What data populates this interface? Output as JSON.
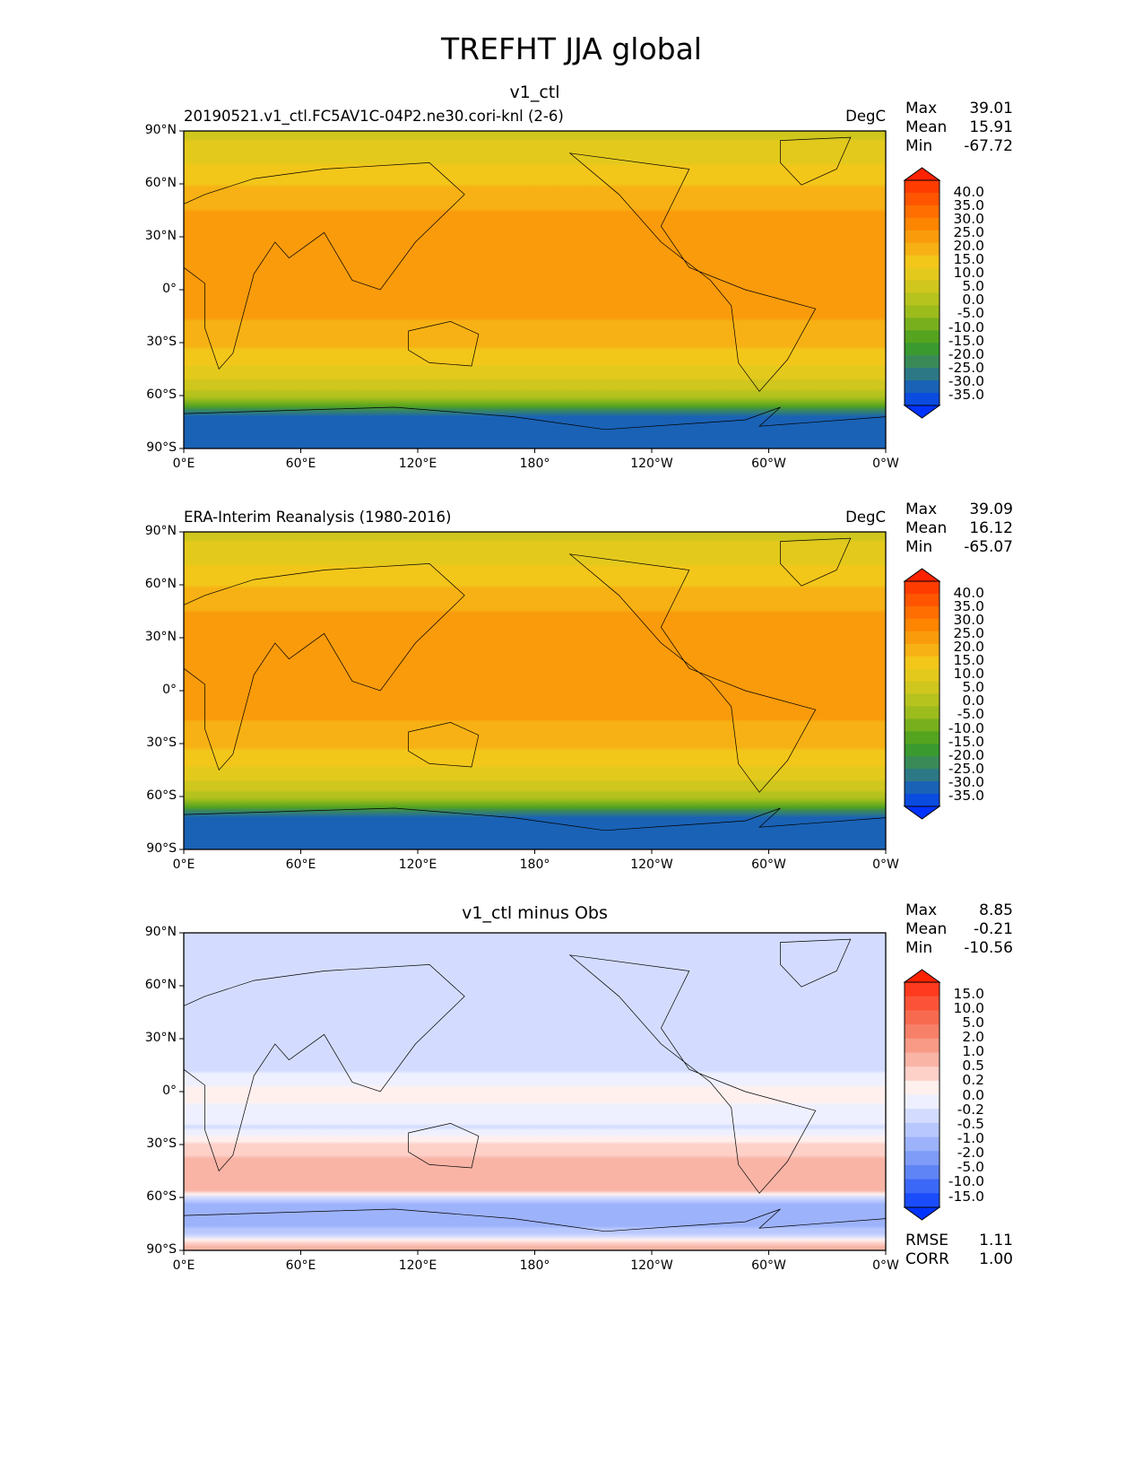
{
  "figure_title": "TREFHT JJA global",
  "chart_data": [
    {
      "type": "heatmap",
      "title": "v1_ctl",
      "left_title": "20190521.v1_ctl.FC5AV1C-04P2.ne30.cori-knl (2-6)",
      "units": "DegC",
      "stats": {
        "max_label": "Max",
        "max": "39.01",
        "mean_label": "Mean",
        "mean": "15.91",
        "min_label": "Min",
        "min": "-67.72"
      },
      "colorbar_labels": [
        "40.0",
        "35.0",
        "30.0",
        "25.0",
        "20.0",
        "15.0",
        "10.0",
        "5.0",
        "0.0",
        "-5.0",
        "-10.0",
        "-15.0",
        "-20.0",
        "-25.0",
        "-30.0",
        "-35.0"
      ],
      "zonal_profile": {
        "lat": [
          90,
          75,
          65,
          50,
          35,
          20,
          0,
          -20,
          -35,
          -45,
          -55,
          -60,
          -65,
          -70,
          -90
        ],
        "value": [
          3,
          8,
          13,
          18,
          25,
          23,
          24,
          19,
          14,
          9,
          3,
          -5,
          -15,
          -35,
          -40
        ]
      }
    },
    {
      "type": "heatmap",
      "title": "",
      "left_title": "ERA-Interim Reanalysis (1980-2016)",
      "units": "DegC",
      "stats": {
        "max_label": "Max",
        "max": "39.09",
        "mean_label": "Mean",
        "mean": "16.12",
        "min_label": "Min",
        "min": "-65.07"
      },
      "colorbar_labels": [
        "40.0",
        "35.0",
        "30.0",
        "25.0",
        "20.0",
        "15.0",
        "10.0",
        "5.0",
        "0.0",
        "-5.0",
        "-10.0",
        "-15.0",
        "-20.0",
        "-25.0",
        "-30.0",
        "-35.0"
      ],
      "zonal_profile": {
        "lat": [
          90,
          75,
          65,
          50,
          35,
          20,
          0,
          -20,
          -35,
          -45,
          -55,
          -60,
          -65,
          -70,
          -90
        ],
        "value": [
          3,
          8,
          13,
          18,
          25,
          24,
          24,
          19,
          14,
          9,
          3,
          -5,
          -15,
          -35,
          -40
        ]
      }
    },
    {
      "type": "heatmap",
      "title": "v1_ctl minus Obs",
      "left_title": "",
      "units": "",
      "stats": {
        "max_label": "Max",
        "max": "8.85",
        "mean_label": "Mean",
        "mean": "-0.21",
        "min_label": "Min",
        "min": "-10.56"
      },
      "colorbar_labels": [
        "15.0",
        "10.0",
        "5.0",
        "2.0",
        "1.0",
        "0.5",
        "0.2",
        "0.0",
        "-0.2",
        "-0.5",
        "-1.0",
        "-2.0",
        "-5.0",
        "-10.0",
        "-15.0"
      ],
      "zonal_profile": {
        "lat": [
          90,
          70,
          50,
          30,
          10,
          0,
          -20,
          -40,
          -55,
          -65,
          -75,
          -90
        ],
        "value": [
          -0.3,
          -0.5,
          -0.5,
          -0.4,
          -0.2,
          0.1,
          -0.2,
          0.6,
          0.8,
          -1.5,
          -1.2,
          0.8
        ]
      },
      "metrics": {
        "rmse_label": "RMSE",
        "rmse": "1.11",
        "corr_label": "CORR",
        "corr": "1.00"
      }
    }
  ],
  "axes": {
    "lat_ticks": [
      "90°N",
      "60°N",
      "30°N",
      "0°",
      "30°S",
      "60°S",
      "90°S"
    ],
    "lon_ticks": [
      "0°E",
      "60°E",
      "120°E",
      "180°",
      "120°W",
      "60°W",
      "0°W"
    ]
  },
  "colors": {
    "temp": [
      "#ff2200",
      "#ff3c00",
      "#ff5500",
      "#ff6e00",
      "#fe8500",
      "#fa9b0c",
      "#f7b114",
      "#f3c61a",
      "#e4c91d",
      "#cfc61e",
      "#b6c21d",
      "#9cbc1c",
      "#78b01d",
      "#54a41f",
      "#3a9a30",
      "#3a8a58",
      "#2d7885",
      "#1a62b5",
      "#0a4be0",
      "#0033ff"
    ],
    "diff": [
      "#ff2200",
      "#ff3a1e",
      "#fc5338",
      "#f86a50",
      "#f78068",
      "#f89a86",
      "#f9b4a6",
      "#fdd0c8",
      "#fff0ee",
      "#eef0ff",
      "#d3dcff",
      "#b8c8ff",
      "#9cb2fb",
      "#7e9cf8",
      "#5f84f5",
      "#3b68f7",
      "#1a4cfb",
      "#0033ff"
    ]
  }
}
